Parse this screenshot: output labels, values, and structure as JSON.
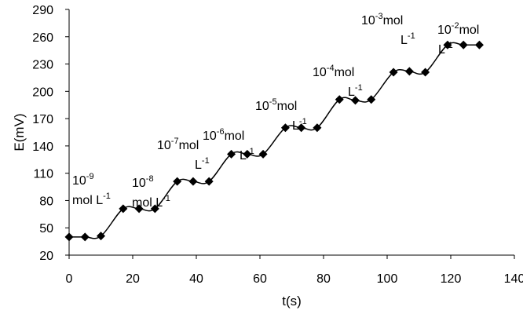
{
  "chart_data": {
    "type": "line",
    "title": "",
    "xlabel": "t(s)",
    "ylabel": "E(mV)",
    "xlim": [
      0,
      140
    ],
    "ylim": [
      20,
      290
    ],
    "xticks": [
      0,
      20,
      40,
      60,
      80,
      100,
      120,
      140
    ],
    "yticks": [
      20,
      50,
      80,
      110,
      140,
      170,
      200,
      230,
      260,
      290
    ],
    "grid": false,
    "legend": "none",
    "marker": "diamond",
    "color": "#000000",
    "series": [
      {
        "x": [
          0,
          5,
          10,
          17,
          22,
          27,
          34,
          39,
          44,
          51,
          56,
          61,
          68,
          73,
          78,
          85,
          90,
          95,
          102,
          107,
          112,
          119,
          124,
          129
        ],
        "y": [
          40,
          40,
          41,
          71,
          71,
          71,
          101,
          101,
          101,
          131,
          131,
          131,
          160,
          160,
          160,
          191,
          190,
          191,
          221,
          222,
          221,
          251,
          251,
          251
        ]
      }
    ],
    "annotations": [
      {
        "base": "10",
        "exp": "-9",
        "unit": "mol L",
        "unit_exp": "-1"
      },
      {
        "base": "10",
        "exp": "-8",
        "unit": "mol L",
        "unit_exp": "-1"
      },
      {
        "base": "10",
        "exp": "-7",
        "unit": "mol",
        "unit2": "L",
        "unit_exp": "-1"
      },
      {
        "base": "10",
        "exp": "-6",
        "unit": "mol",
        "unit2": "L",
        "unit_exp": "-1"
      },
      {
        "base": "10",
        "exp": "-5",
        "unit": "mol",
        "unit2": "L",
        "unit_exp": "-1"
      },
      {
        "base": "10",
        "exp": "-4",
        "unit": "mol",
        "unit2": "L",
        "unit_exp": "-1"
      },
      {
        "base": "10",
        "exp": "-3",
        "unit": "mol",
        "unit2": "L",
        "unit_exp": "-1"
      },
      {
        "base": "10",
        "exp": "-2",
        "unit": "mol",
        "unit2": "L",
        "unit_exp": "-1"
      }
    ]
  }
}
